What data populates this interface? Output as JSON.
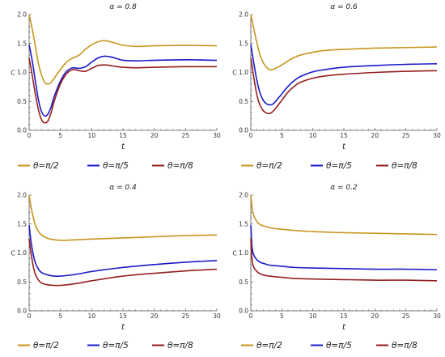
{
  "chart_data": [
    {
      "type": "line",
      "title": "α = 0.8",
      "xlabel": "t",
      "ylabel": "C",
      "xlim": [
        0,
        30
      ],
      "ylim": [
        0,
        2
      ],
      "xticks": [
        "0",
        "5",
        "10",
        "15",
        "20",
        "25",
        "30"
      ],
      "yticks": [
        "0.0",
        "0.5",
        "1.0",
        "1.5",
        "2.0"
      ],
      "series": [
        {
          "name": "θ=π/2",
          "color": "#c8961e",
          "x": [
            0,
            0.5,
            1,
            1.5,
            2,
            2.5,
            3,
            3.5,
            4,
            5,
            6,
            7,
            8,
            9,
            10,
            11,
            12,
            13,
            14,
            15,
            17,
            20,
            25,
            30
          ],
          "y": [
            2.0,
            1.75,
            1.45,
            1.15,
            0.95,
            0.83,
            0.8,
            0.83,
            0.9,
            1.05,
            1.18,
            1.25,
            1.3,
            1.4,
            1.48,
            1.53,
            1.55,
            1.53,
            1.5,
            1.47,
            1.45,
            1.46,
            1.47,
            1.46
          ]
        },
        {
          "name": "θ=π/5",
          "color": "#1a1ac8",
          "x": [
            0,
            0.5,
            1,
            1.5,
            2,
            2.5,
            3,
            3.5,
            4,
            5,
            6,
            7,
            8,
            9,
            10,
            11,
            12,
            13,
            14,
            15,
            17,
            20,
            25,
            30
          ],
          "y": [
            1.48,
            1.2,
            0.85,
            0.52,
            0.32,
            0.25,
            0.28,
            0.4,
            0.58,
            0.85,
            1.02,
            1.08,
            1.07,
            1.1,
            1.18,
            1.25,
            1.28,
            1.27,
            1.24,
            1.21,
            1.2,
            1.21,
            1.22,
            1.21
          ]
        },
        {
          "name": "θ=π/8",
          "color": "#961e1e",
          "x": [
            0,
            0.5,
            1,
            1.5,
            2,
            2.5,
            3,
            3.5,
            4,
            5,
            6,
            7,
            8,
            9,
            10,
            11,
            12,
            13,
            14,
            15,
            17,
            20,
            25,
            30
          ],
          "y": [
            1.25,
            0.95,
            0.62,
            0.35,
            0.18,
            0.13,
            0.16,
            0.3,
            0.5,
            0.8,
            0.98,
            1.05,
            1.03,
            1.02,
            1.07,
            1.12,
            1.13,
            1.12,
            1.1,
            1.09,
            1.08,
            1.09,
            1.1,
            1.1
          ]
        }
      ]
    },
    {
      "type": "line",
      "title": "α = 0.6",
      "xlabel": "t",
      "ylabel": "C",
      "xlim": [
        0,
        30
      ],
      "ylim": [
        0,
        2
      ],
      "xticks": [
        "0",
        "5",
        "10",
        "15",
        "20",
        "25",
        "30"
      ],
      "yticks": [
        "0.0",
        "0.5",
        "1.0",
        "1.5",
        "2.0"
      ],
      "series": [
        {
          "name": "θ=π/2",
          "color": "#c8961e",
          "x": [
            0,
            0.5,
            1,
            1.5,
            2,
            2.5,
            3,
            3.5,
            4,
            5,
            6,
            7,
            8,
            10,
            12,
            15,
            20,
            25,
            30
          ],
          "y": [
            2.0,
            1.75,
            1.5,
            1.3,
            1.17,
            1.09,
            1.05,
            1.05,
            1.07,
            1.13,
            1.2,
            1.26,
            1.3,
            1.35,
            1.38,
            1.4,
            1.42,
            1.43,
            1.44
          ]
        },
        {
          "name": "θ=π/5",
          "color": "#1a1ac8",
          "x": [
            0,
            0.5,
            1,
            1.5,
            2,
            2.5,
            3,
            3.5,
            4,
            5,
            6,
            7,
            8,
            10,
            12,
            15,
            20,
            25,
            30
          ],
          "y": [
            1.48,
            1.15,
            0.85,
            0.64,
            0.52,
            0.46,
            0.44,
            0.45,
            0.5,
            0.63,
            0.76,
            0.86,
            0.93,
            1.01,
            1.05,
            1.09,
            1.12,
            1.14,
            1.15
          ]
        },
        {
          "name": "θ=π/8",
          "color": "#961e1e",
          "x": [
            0,
            0.5,
            1,
            1.5,
            2,
            2.5,
            3,
            3.5,
            4,
            5,
            6,
            7,
            8,
            10,
            12,
            15,
            20,
            25,
            30
          ],
          "y": [
            1.25,
            0.9,
            0.6,
            0.43,
            0.34,
            0.3,
            0.29,
            0.32,
            0.38,
            0.52,
            0.66,
            0.76,
            0.83,
            0.9,
            0.94,
            0.97,
            1.0,
            1.02,
            1.03
          ]
        }
      ]
    },
    {
      "type": "line",
      "title": "α = 0.4",
      "xlabel": "t",
      "ylabel": "C",
      "xlim": [
        0,
        30
      ],
      "ylim": [
        0,
        2
      ],
      "xticks": [
        "0",
        "5",
        "10",
        "15",
        "20",
        "25",
        "30"
      ],
      "yticks": [
        "0.0",
        "0.5",
        "1.0",
        "1.5",
        "2.0"
      ],
      "series": [
        {
          "name": "θ=π/2",
          "color": "#c8961e",
          "x": [
            0,
            0.3,
            0.7,
            1,
            1.5,
            2,
            3,
            4,
            5,
            6,
            8,
            10,
            15,
            20,
            25,
            30
          ],
          "y": [
            2.0,
            1.8,
            1.6,
            1.48,
            1.37,
            1.31,
            1.25,
            1.23,
            1.22,
            1.22,
            1.23,
            1.24,
            1.26,
            1.28,
            1.3,
            1.31
          ]
        },
        {
          "name": "θ=π/5",
          "color": "#1a1ac8",
          "x": [
            0,
            0.3,
            0.7,
            1,
            1.5,
            2,
            3,
            4,
            5,
            6,
            8,
            10,
            15,
            20,
            25,
            30
          ],
          "y": [
            1.48,
            1.2,
            0.95,
            0.83,
            0.72,
            0.66,
            0.62,
            0.6,
            0.6,
            0.61,
            0.64,
            0.68,
            0.75,
            0.8,
            0.84,
            0.87
          ]
        },
        {
          "name": "θ=π/8",
          "color": "#961e1e",
          "x": [
            0,
            0.3,
            0.7,
            1,
            1.5,
            2,
            3,
            4,
            5,
            6,
            8,
            10,
            15,
            20,
            25,
            30
          ],
          "y": [
            1.25,
            1.0,
            0.75,
            0.63,
            0.53,
            0.48,
            0.45,
            0.44,
            0.44,
            0.45,
            0.48,
            0.52,
            0.6,
            0.65,
            0.69,
            0.72
          ]
        }
      ]
    },
    {
      "type": "line",
      "title": "α = 0.2",
      "xlabel": "t",
      "ylabel": "C",
      "xlim": [
        0,
        30
      ],
      "ylim": [
        0,
        2
      ],
      "xticks": [
        "0",
        "5",
        "10",
        "15",
        "20",
        "25",
        "30"
      ],
      "yticks": [
        "0.0",
        "0.5",
        "1.0",
        "1.5",
        "2.0"
      ],
      "series": [
        {
          "name": "θ=π/2",
          "color": "#c8961e",
          "x": [
            0,
            0.2,
            0.5,
            1,
            1.5,
            2,
            3,
            4,
            5,
            7,
            10,
            15,
            20,
            25,
            30
          ],
          "y": [
            2.0,
            1.78,
            1.64,
            1.54,
            1.49,
            1.47,
            1.44,
            1.42,
            1.41,
            1.39,
            1.37,
            1.35,
            1.34,
            1.33,
            1.32
          ]
        },
        {
          "name": "θ=π/5",
          "color": "#1a1ac8",
          "x": [
            0,
            0.2,
            0.5,
            1,
            1.5,
            2,
            3,
            4,
            5,
            7,
            10,
            15,
            20,
            25,
            30
          ],
          "y": [
            1.48,
            1.1,
            0.96,
            0.88,
            0.84,
            0.82,
            0.79,
            0.78,
            0.77,
            0.75,
            0.74,
            0.73,
            0.72,
            0.72,
            0.71
          ]
        },
        {
          "name": "θ=π/8",
          "color": "#961e1e",
          "x": [
            0,
            0.2,
            0.5,
            1,
            1.5,
            2,
            3,
            4,
            5,
            7,
            10,
            15,
            20,
            25,
            30
          ],
          "y": [
            1.25,
            0.88,
            0.75,
            0.68,
            0.64,
            0.62,
            0.6,
            0.59,
            0.58,
            0.56,
            0.55,
            0.54,
            0.53,
            0.53,
            0.52
          ]
        }
      ]
    }
  ]
}
